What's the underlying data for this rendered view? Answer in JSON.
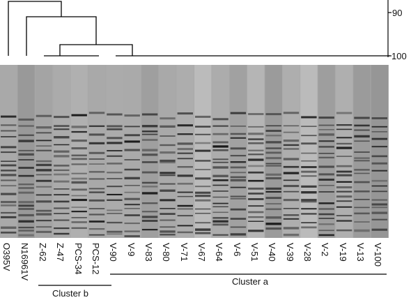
{
  "scale": {
    "ticks": [
      "90",
      "100"
    ]
  },
  "lanes": [
    "O395V",
    "N16961V",
    "Z-62",
    "Z-47",
    "PCS-34",
    "PCS-12",
    "V-90",
    "V-9",
    "V-83",
    "V-80",
    "V-71",
    "V-67",
    "V-64",
    "V-6",
    "V-51",
    "V-40",
    "V-39",
    "V-28",
    "V-2",
    "V-19",
    "V-13",
    "V-100"
  ],
  "clusters": {
    "b": "Cluster b",
    "a": "Cluster a"
  },
  "colors": {
    "gel_bg": "#a9a9a9",
    "band": "#262626",
    "line": "#000000"
  }
}
